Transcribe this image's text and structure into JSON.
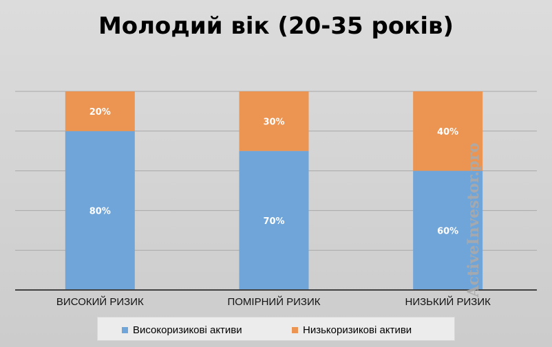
{
  "title": "Молодий вік (20-35 років)",
  "watermark": "ActiveInvestor.pro",
  "colors": {
    "high": "#70a5d9",
    "low": "#ec9452"
  },
  "chart_data": {
    "type": "bar",
    "stacked": true,
    "percent": true,
    "categories": [
      "ВИСОКИЙ РИЗИК",
      "ПОМІРНИЙ РИЗИК",
      "НИЗЬКИЙ РИЗИК"
    ],
    "series": [
      {
        "name": "Високоризикові активи",
        "values": [
          80,
          70,
          60
        ],
        "labels": [
          "80%",
          "70%",
          "60%"
        ]
      },
      {
        "name": "Низькоризикові активи",
        "values": [
          20,
          30,
          40
        ],
        "labels": [
          "20%",
          "30%",
          "40%"
        ]
      }
    ],
    "ylim": [
      0,
      100
    ],
    "grid": true,
    "legend": "bottom"
  }
}
